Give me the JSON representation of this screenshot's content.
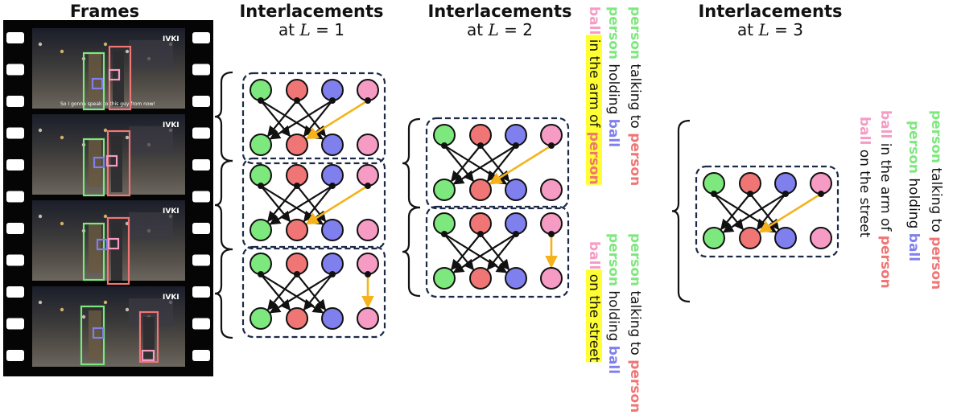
{
  "headers": {
    "frames": "Frames",
    "l1": {
      "title": "Interlacements",
      "prefix": "at ",
      "var": "L",
      "suffix": " = 1"
    },
    "l2": {
      "title": "Interlacements",
      "prefix": "at ",
      "var": "L",
      "suffix": " = 2"
    },
    "l3": {
      "title": "Interlacements",
      "prefix": "at ",
      "var": "L",
      "suffix": " = 3"
    }
  },
  "colors": {
    "person_green": "#7de87d",
    "person_red": "#f07575",
    "ball_blue": "#7f7fee",
    "ball_pink": "#f59bc4",
    "relation_arrow": "#f5b21a",
    "highlight": "#ffff33",
    "box_border": "#1c2a48"
  },
  "overlay_text": "So I gonna speak to this guy from now!",
  "watermark": "IVKI",
  "relations_l2": {
    "group_a": [
      [
        {
          "t": "ball",
          "c": "ball_pink",
          "b": true
        },
        {
          "t": " in the arm of ",
          "c": "text",
          "hl": true
        },
        {
          "t": "person",
          "c": "person_red",
          "b": true,
          "hl": true
        }
      ],
      [
        {
          "t": "person",
          "c": "person_green",
          "b": true
        },
        {
          "t": " holding ",
          "c": "text"
        },
        {
          "t": "ball",
          "c": "ball_blue",
          "b": true
        }
      ],
      [
        {
          "t": "person",
          "c": "person_green",
          "b": true
        },
        {
          "t": " talking to ",
          "c": "text"
        },
        {
          "t": "person",
          "c": "person_red",
          "b": true
        }
      ]
    ],
    "group_b": [
      [
        {
          "t": "ball",
          "c": "ball_pink",
          "b": true
        },
        {
          "t": " on the street",
          "c": "text",
          "hl": true
        }
      ],
      [
        {
          "t": "person",
          "c": "person_green",
          "b": true
        },
        {
          "t": " holding ",
          "c": "text"
        },
        {
          "t": "ball",
          "c": "ball_blue",
          "b": true
        }
      ],
      [
        {
          "t": "person",
          "c": "person_green",
          "b": true
        },
        {
          "t": " talking to ",
          "c": "text"
        },
        {
          "t": "person",
          "c": "person_red",
          "b": true
        }
      ]
    ]
  },
  "relations_l3": [
    [
      {
        "t": "ball",
        "c": "ball_pink",
        "b": true
      },
      {
        "t": " on the street",
        "c": "text"
      }
    ],
    [
      {
        "t": "ball",
        "c": "ball_pink",
        "b": true
      },
      {
        "t": " in the arm of ",
        "c": "text"
      },
      {
        "t": "person",
        "c": "person_red",
        "b": true
      }
    ],
    [
      {
        "t": "person",
        "c": "person_green",
        "b": true
      },
      {
        "t": " holding ",
        "c": "text"
      },
      {
        "t": "ball",
        "c": "ball_blue",
        "b": true
      }
    ],
    [
      {
        "t": "person",
        "c": "person_green",
        "b": true
      },
      {
        "t": " talking to ",
        "c": "text"
      },
      {
        "t": "person",
        "c": "person_red",
        "b": true
      }
    ]
  ]
}
